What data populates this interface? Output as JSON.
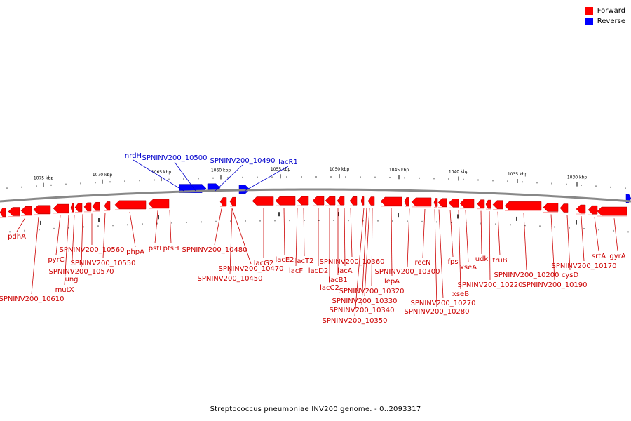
{
  "caption": "Streptococcus pneumoniae INV200 genome. - 0..2093317",
  "legend": {
    "forward_label": "Forward",
    "reverse_label": "Reverse",
    "forward_color": "#ff0000",
    "reverse_color": "#0000ff"
  },
  "colors": {
    "forward_label": "#cc0000",
    "reverse_label": "#0000cc",
    "backbone": "#888888"
  },
  "ruler": {
    "unit": "kbp",
    "ticks": [
      {
        "label": "1075 kbp"
      },
      {
        "label": "1070 kbp"
      },
      {
        "label": "1065 kbp"
      },
      {
        "label": "1060 kbp"
      },
      {
        "label": "1055 kbp"
      },
      {
        "label": "1050 kbp"
      },
      {
        "label": "1045 kbp"
      },
      {
        "label": "1040 kbp"
      },
      {
        "label": "1035 kbp"
      },
      {
        "label": "1030 kbp"
      }
    ]
  },
  "reverse_genes": [
    {
      "name": "nrdH"
    },
    {
      "name": "SPNINV200_10500"
    },
    {
      "name": "SPNINV200_10490"
    },
    {
      "name": "lacR1"
    }
  ],
  "forward_genes": [
    {
      "name": "pdhA"
    },
    {
      "name": "SPNINV200_10610"
    },
    {
      "name": "pyrC"
    },
    {
      "name": "mutX"
    },
    {
      "name": "ung"
    },
    {
      "name": "SPNINV200_10570"
    },
    {
      "name": "SPNINV200_10560"
    },
    {
      "name": "SPNINV200_10550"
    },
    {
      "name": "phpA"
    },
    {
      "name": "pstI"
    },
    {
      "name": "ptsH"
    },
    {
      "name": "SPNINV200_10480"
    },
    {
      "name": "SPNINV200_10470"
    },
    {
      "name": "SPNINV200_10450"
    },
    {
      "name": "lacG2"
    },
    {
      "name": "lacE2"
    },
    {
      "name": "lacF"
    },
    {
      "name": "lacT2"
    },
    {
      "name": "lacD2"
    },
    {
      "name": "lacC2"
    },
    {
      "name": "lacB1"
    },
    {
      "name": "lacA"
    },
    {
      "name": "SPNINV200_10360"
    },
    {
      "name": "SPNINV200_10350"
    },
    {
      "name": "SPNINV200_10340"
    },
    {
      "name": "SPNINV200_10330"
    },
    {
      "name": "SPNINV200_10320"
    },
    {
      "name": "lepA"
    },
    {
      "name": "SPNINV200_10300"
    },
    {
      "name": "recN"
    },
    {
      "name": "SPNINV200_10280"
    },
    {
      "name": "SPNINV200_10270"
    },
    {
      "name": "fps"
    },
    {
      "name": "xseB"
    },
    {
      "name": "xseA"
    },
    {
      "name": "SPNINV200_10220"
    },
    {
      "name": "udk"
    },
    {
      "name": "truB"
    },
    {
      "name": "SPNINV200_10200"
    },
    {
      "name": "SPNINV200_10190"
    },
    {
      "name": "cysD"
    },
    {
      "name": "SPNINV200_10170"
    },
    {
      "name": "srtA"
    },
    {
      "name": "gyrA"
    }
  ]
}
